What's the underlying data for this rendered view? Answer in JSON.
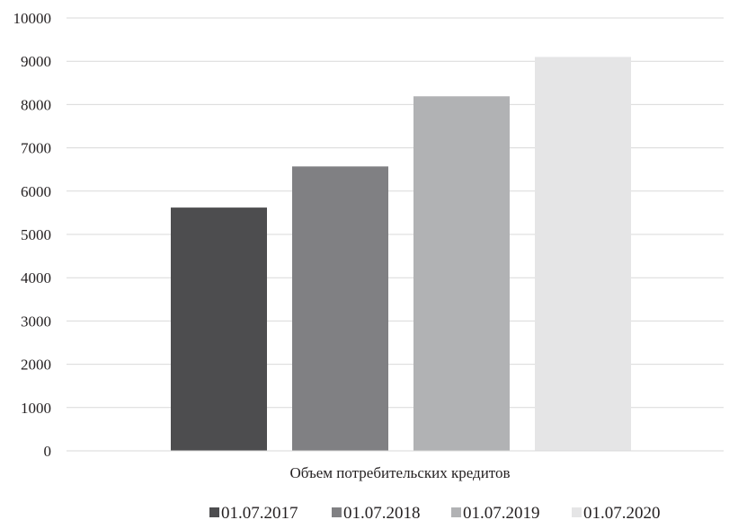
{
  "chart_data": {
    "type": "bar",
    "categories": [
      "Объем потребительских кредитов"
    ],
    "series": [
      {
        "name": "01.07.2017",
        "values": [
          5620
        ],
        "color": "#4d4d4f"
      },
      {
        "name": "01.07.2018",
        "values": [
          6570
        ],
        "color": "#808083"
      },
      {
        "name": "01.07.2019",
        "values": [
          8190
        ],
        "color": "#b1b2b4"
      },
      {
        "name": "01.07.2020",
        "values": [
          9100
        ],
        "color": "#e5e5e6"
      }
    ],
    "ylim": [
      0,
      10000
    ],
    "yticks": [
      0,
      1000,
      2000,
      3000,
      4000,
      5000,
      6000,
      7000,
      8000,
      9000,
      10000
    ],
    "grid": true,
    "gridline_color": "#d9d9d9",
    "legend_position": "bottom-center"
  }
}
